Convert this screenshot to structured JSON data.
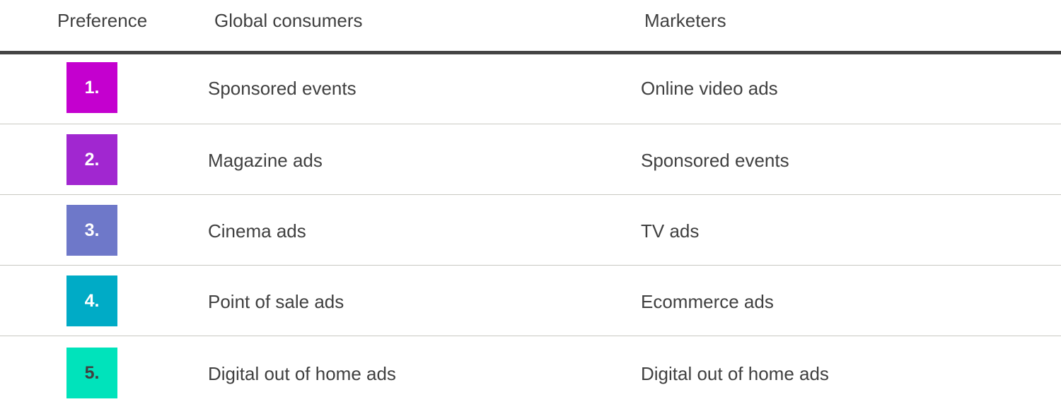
{
  "headers": {
    "preference": "Preference",
    "consumers": "Global consumers",
    "marketers": "Marketers"
  },
  "rows": [
    {
      "rank": "1.",
      "color": "#c400cf",
      "rank_text_color": "#ffffff",
      "consumers": "Sponsored events",
      "marketers": "Online video ads"
    },
    {
      "rank": "2.",
      "color": "#a127d0",
      "rank_text_color": "#ffffff",
      "consumers": "Magazine ads",
      "marketers": "Sponsored events"
    },
    {
      "rank": "3.",
      "color": "#6e78c9",
      "rank_text_color": "#ffffff",
      "consumers": "Cinema ads",
      "marketers": "TV ads"
    },
    {
      "rank": "4.",
      "color": "#00abc6",
      "rank_text_color": "#ffffff",
      "consumers": "Point of sale ads",
      "marketers": "Ecommerce ads"
    },
    {
      "rank": "5.",
      "color": "#00e3bb",
      "rank_text_color": "#404040",
      "consumers": "Digital out of home ads",
      "marketers": "Digital out of home ads"
    }
  ]
}
